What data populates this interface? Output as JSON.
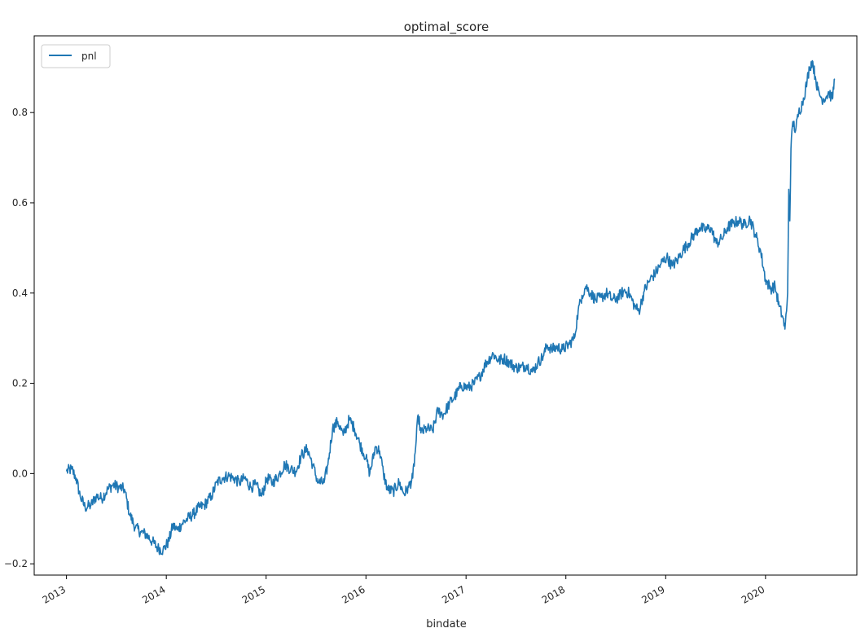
{
  "chart_data": {
    "type": "line",
    "title": "optimal_score",
    "xlabel": "bindate",
    "ylabel": "",
    "x_ticks": [
      "2013",
      "2014",
      "2015",
      "2016",
      "2017",
      "2018",
      "2019",
      "2020"
    ],
    "y_ticks": [
      "0.8",
      "0.6",
      "0.4",
      "0.2",
      "0.0",
      "−0.2"
    ],
    "y_tick_values": [
      0.8,
      0.6,
      0.4,
      0.2,
      0.0,
      -0.2
    ],
    "xlim": [
      "2012-09-05",
      "2020-11-30"
    ],
    "ylim": [
      -0.225,
      0.97
    ],
    "grid": false,
    "legend": {
      "position": "upper-left",
      "entries": [
        "pnl"
      ]
    },
    "series": [
      {
        "name": "pnl",
        "color": "#1f77b4",
        "points": [
          [
            "2013-01-01",
            0.005
          ],
          [
            "2013-01-20",
            0.01
          ],
          [
            "2013-02-05",
            -0.01
          ],
          [
            "2013-02-20",
            -0.05
          ],
          [
            "2013-03-10",
            -0.075
          ],
          [
            "2013-04-01",
            -0.07
          ],
          [
            "2013-04-20",
            -0.05
          ],
          [
            "2013-05-10",
            -0.055
          ],
          [
            "2013-06-01",
            -0.035
          ],
          [
            "2013-06-20",
            -0.025
          ],
          [
            "2013-07-10",
            -0.03
          ],
          [
            "2013-08-01",
            -0.035
          ],
          [
            "2013-08-20",
            -0.09
          ],
          [
            "2013-09-10",
            -0.12
          ],
          [
            "2013-10-01",
            -0.13
          ],
          [
            "2013-10-20",
            -0.135
          ],
          [
            "2013-11-10",
            -0.15
          ],
          [
            "2013-12-01",
            -0.165
          ],
          [
            "2013-12-20",
            -0.17
          ],
          [
            "2014-01-10",
            -0.15
          ],
          [
            "2014-01-25",
            -0.115
          ],
          [
            "2014-02-10",
            -0.125
          ],
          [
            "2014-03-01",
            -0.11
          ],
          [
            "2014-03-20",
            -0.1
          ],
          [
            "2014-04-10",
            -0.09
          ],
          [
            "2014-05-01",
            -0.075
          ],
          [
            "2014-05-20",
            -0.07
          ],
          [
            "2014-06-15",
            -0.05
          ],
          [
            "2014-07-05",
            -0.02
          ],
          [
            "2014-07-25",
            -0.01
          ],
          [
            "2014-08-15",
            -0.005
          ],
          [
            "2014-09-05",
            -0.01
          ],
          [
            "2014-09-25",
            -0.02
          ],
          [
            "2014-10-15",
            -0.01
          ],
          [
            "2014-11-05",
            -0.03
          ],
          [
            "2014-11-25",
            -0.025
          ],
          [
            "2014-12-15",
            -0.05
          ],
          [
            "2015-01-05",
            -0.01
          ],
          [
            "2015-01-25",
            -0.02
          ],
          [
            "2015-02-15",
            -0.005
          ],
          [
            "2015-03-10",
            0.02
          ],
          [
            "2015-04-01",
            0.01
          ],
          [
            "2015-04-20",
            0.005
          ],
          [
            "2015-05-10",
            0.04
          ],
          [
            "2015-06-01",
            0.055
          ],
          [
            "2015-06-20",
            0.02
          ],
          [
            "2015-07-10",
            -0.02
          ],
          [
            "2015-08-01",
            -0.02
          ],
          [
            "2015-08-15",
            0.02
          ],
          [
            "2015-09-01",
            0.1
          ],
          [
            "2015-09-20",
            0.115
          ],
          [
            "2015-10-10",
            0.085
          ],
          [
            "2015-11-01",
            0.12
          ],
          [
            "2015-11-20",
            0.1
          ],
          [
            "2015-12-10",
            0.065
          ],
          [
            "2016-01-01",
            0.035
          ],
          [
            "2016-01-15",
            0.0
          ],
          [
            "2016-02-05",
            0.06
          ],
          [
            "2016-02-20",
            0.05
          ],
          [
            "2016-03-05",
            0.0
          ],
          [
            "2016-03-20",
            -0.035
          ],
          [
            "2016-04-10",
            -0.04
          ],
          [
            "2016-05-01",
            -0.02
          ],
          [
            "2016-05-20",
            -0.045
          ],
          [
            "2016-06-05",
            -0.03
          ],
          [
            "2016-06-20",
            -0.01
          ],
          [
            "2016-07-01",
            0.06
          ],
          [
            "2016-07-10",
            0.13
          ],
          [
            "2016-07-20",
            0.09
          ],
          [
            "2016-08-10",
            0.1
          ],
          [
            "2016-09-01",
            0.095
          ],
          [
            "2016-09-20",
            0.14
          ],
          [
            "2016-10-10",
            0.13
          ],
          [
            "2016-11-01",
            0.155
          ],
          [
            "2016-11-20",
            0.17
          ],
          [
            "2016-12-15",
            0.195
          ],
          [
            "2017-01-10",
            0.19
          ],
          [
            "2017-02-01",
            0.2
          ],
          [
            "2017-02-20",
            0.215
          ],
          [
            "2017-03-15",
            0.245
          ],
          [
            "2017-04-10",
            0.265
          ],
          [
            "2017-05-01",
            0.25
          ],
          [
            "2017-05-20",
            0.255
          ],
          [
            "2017-06-10",
            0.245
          ],
          [
            "2017-07-01",
            0.235
          ],
          [
            "2017-07-20",
            0.235
          ],
          [
            "2017-08-10",
            0.24
          ],
          [
            "2017-09-01",
            0.225
          ],
          [
            "2017-09-20",
            0.245
          ],
          [
            "2017-10-10",
            0.26
          ],
          [
            "2017-10-25",
            0.285
          ],
          [
            "2017-11-10",
            0.275
          ],
          [
            "2017-12-01",
            0.28
          ],
          [
            "2017-12-20",
            0.275
          ],
          [
            "2018-01-10",
            0.285
          ],
          [
            "2018-02-01",
            0.3
          ],
          [
            "2018-02-15",
            0.36
          ],
          [
            "2018-03-01",
            0.395
          ],
          [
            "2018-03-15",
            0.415
          ],
          [
            "2018-04-01",
            0.4
          ],
          [
            "2018-04-20",
            0.385
          ],
          [
            "2018-05-10",
            0.39
          ],
          [
            "2018-06-01",
            0.4
          ],
          [
            "2018-06-20",
            0.385
          ],
          [
            "2018-07-10",
            0.39
          ],
          [
            "2018-08-01",
            0.405
          ],
          [
            "2018-08-20",
            0.4
          ],
          [
            "2018-09-10",
            0.37
          ],
          [
            "2018-09-25",
            0.36
          ],
          [
            "2018-10-15",
            0.405
          ],
          [
            "2018-11-05",
            0.43
          ],
          [
            "2018-11-25",
            0.445
          ],
          [
            "2018-12-15",
            0.465
          ],
          [
            "2019-01-05",
            0.48
          ],
          [
            "2019-01-25",
            0.46
          ],
          [
            "2019-02-15",
            0.475
          ],
          [
            "2019-03-05",
            0.495
          ],
          [
            "2019-03-25",
            0.51
          ],
          [
            "2019-04-15",
            0.53
          ],
          [
            "2019-05-05",
            0.545
          ],
          [
            "2019-05-25",
            0.54
          ],
          [
            "2019-06-15",
            0.545
          ],
          [
            "2019-07-05",
            0.51
          ],
          [
            "2019-07-25",
            0.52
          ],
          [
            "2019-08-15",
            0.545
          ],
          [
            "2019-09-05",
            0.555
          ],
          [
            "2019-09-25",
            0.56
          ],
          [
            "2019-10-15",
            0.55
          ],
          [
            "2019-11-05",
            0.565
          ],
          [
            "2019-11-25",
            0.53
          ],
          [
            "2019-12-15",
            0.49
          ],
          [
            "2020-01-01",
            0.43
          ],
          [
            "2020-01-20",
            0.41
          ],
          [
            "2020-02-05",
            0.415
          ],
          [
            "2020-02-20",
            0.37
          ],
          [
            "2020-03-05",
            0.345
          ],
          [
            "2020-03-12",
            0.32
          ],
          [
            "2020-03-18",
            0.36
          ],
          [
            "2020-03-22",
            0.4
          ],
          [
            "2020-03-26",
            0.63
          ],
          [
            "2020-03-30",
            0.56
          ],
          [
            "2020-04-03",
            0.72
          ],
          [
            "2020-04-10",
            0.78
          ],
          [
            "2020-04-20",
            0.76
          ],
          [
            "2020-05-01",
            0.8
          ],
          [
            "2020-05-15",
            0.82
          ],
          [
            "2020-06-01",
            0.87
          ],
          [
            "2020-06-10",
            0.9
          ],
          [
            "2020-06-20",
            0.915
          ],
          [
            "2020-07-01",
            0.88
          ],
          [
            "2020-07-10",
            0.85
          ],
          [
            "2020-07-25",
            0.83
          ],
          [
            "2020-08-10",
            0.835
          ],
          [
            "2020-08-20",
            0.845
          ],
          [
            "2020-09-01",
            0.83
          ],
          [
            "2020-09-10",
            0.875
          ]
        ]
      }
    ]
  }
}
